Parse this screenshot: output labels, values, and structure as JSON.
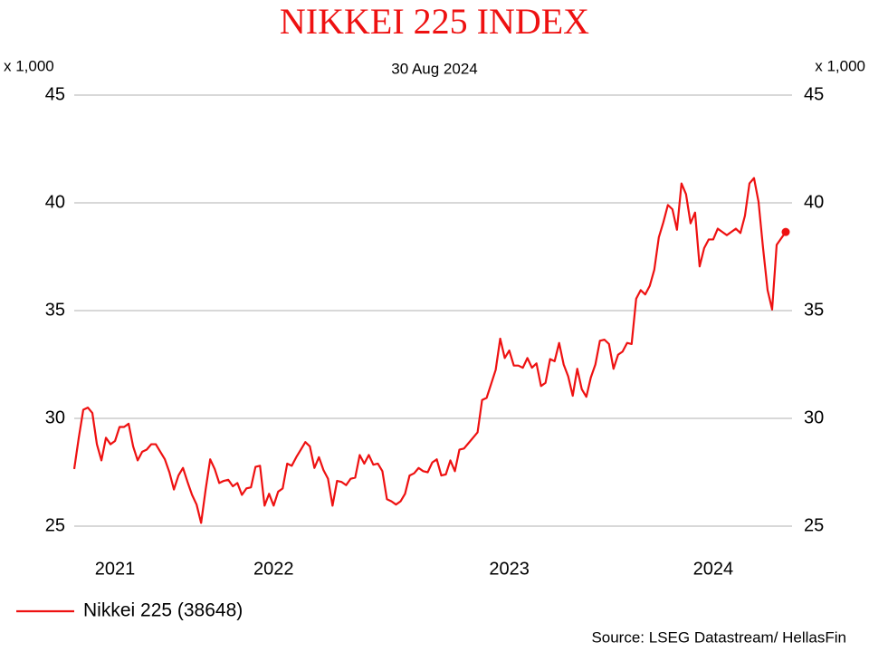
{
  "chart_data": {
    "type": "line",
    "title": "NIKKEI 225 INDEX",
    "subtitle": "30 Aug 2024",
    "y_label": "x 1,000",
    "y2_label": "x 1,000",
    "source": "Source: LSEG Datastream/ HellasFin",
    "categories": [
      null,
      null,
      null,
      null,
      null,
      null,
      null,
      null,
      null,
      "2021",
      null,
      null,
      null,
      null,
      null,
      null,
      null,
      null,
      null,
      null,
      null,
      null,
      null,
      null,
      null,
      null,
      null,
      null,
      null,
      null,
      null,
      null,
      null,
      null,
      null,
      null,
      null,
      null,
      null,
      null,
      null,
      null,
      null,
      null,
      "2022",
      null,
      null,
      null,
      null,
      null,
      null,
      null,
      null,
      null,
      null,
      null,
      null,
      null,
      null,
      null,
      null,
      null,
      null,
      null,
      null,
      null,
      null,
      null,
      null,
      null,
      null,
      null,
      null,
      null,
      null,
      null,
      null,
      null,
      null,
      null,
      null,
      null,
      null,
      null,
      null,
      null,
      null,
      null,
      null,
      null,
      null,
      null,
      null,
      null,
      null,
      null,
      "2023",
      null,
      null,
      null,
      null,
      null,
      null,
      null,
      null,
      null,
      null,
      null,
      null,
      null,
      null,
      null,
      null,
      null,
      null,
      null,
      null,
      null,
      null,
      null,
      null,
      null,
      null,
      null,
      null,
      null,
      null,
      null,
      null,
      null,
      null,
      null,
      null,
      null,
      null,
      null,
      null,
      null,
      null,
      null,
      null,
      "2024",
      null,
      null,
      null,
      null,
      null,
      null,
      null,
      null,
      null,
      null,
      null,
      null,
      null,
      null,
      null,
      null
    ],
    "series": [
      {
        "name": "Nikkei 225 (38648)",
        "color": "#ee1111",
        "values": [
          27.65,
          29.1,
          30.4,
          30.5,
          30.25,
          28.8,
          28.05,
          29.1,
          28.8,
          28.95,
          29.6,
          29.6,
          29.75,
          28.7,
          28.05,
          28.45,
          28.55,
          28.8,
          28.8,
          28.45,
          28.1,
          27.5,
          26.7,
          27.35,
          27.7,
          27.05,
          26.45,
          26.0,
          25.15,
          26.7,
          28.1,
          27.65,
          27.0,
          27.1,
          27.15,
          26.85,
          27.0,
          26.45,
          26.75,
          26.8,
          27.75,
          27.8,
          25.95,
          26.5,
          25.95,
          26.6,
          26.75,
          27.9,
          27.8,
          28.2,
          28.55,
          28.9,
          28.7,
          27.7,
          28.2,
          27.6,
          27.2,
          25.95,
          27.1,
          27.05,
          26.9,
          27.2,
          27.25,
          28.3,
          27.9,
          28.3,
          27.85,
          27.9,
          27.55,
          26.25,
          26.15,
          26.0,
          26.15,
          26.5,
          27.35,
          27.45,
          27.7,
          27.55,
          27.5,
          27.95,
          28.1,
          27.35,
          27.4,
          28.05,
          27.55,
          28.55,
          28.6,
          28.85,
          29.1,
          29.35,
          30.85,
          30.95,
          31.6,
          32.25,
          33.7,
          32.8,
          33.15,
          32.45,
          32.45,
          32.35,
          32.8,
          32.35,
          32.55,
          31.5,
          31.65,
          32.75,
          32.65,
          33.5,
          32.5,
          31.95,
          31.05,
          32.3,
          31.35,
          31.0,
          31.9,
          32.5,
          33.6,
          33.65,
          33.45,
          32.3,
          32.95,
          33.1,
          33.5,
          33.45,
          35.55,
          35.95,
          35.75,
          36.15,
          36.9,
          38.4,
          39.1,
          39.9,
          39.7,
          38.75,
          40.9,
          40.4,
          39.05,
          39.55,
          37.05,
          37.9,
          38.3,
          38.3,
          38.8,
          38.65,
          38.5,
          38.65,
          38.8,
          38.6,
          39.4,
          40.9,
          41.15,
          40.05,
          37.9,
          35.95,
          35.05,
          38.05,
          38.35,
          38.648
        ]
      }
    ],
    "ylim": [
      25,
      45
    ],
    "yticks": [
      25,
      30,
      35,
      40,
      45
    ],
    "y2lim": [
      25,
      45
    ],
    "y2ticks": [
      25,
      30,
      35,
      40,
      45
    ],
    "grid": true,
    "legend": "bottom-left",
    "end_marker": true
  }
}
